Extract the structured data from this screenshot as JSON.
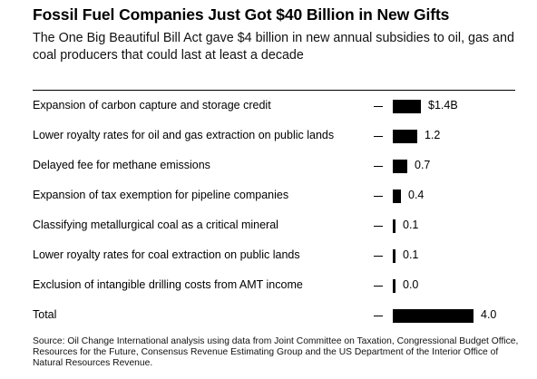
{
  "title": "Fossil Fuel Companies Just Got $40 Billion in New Gifts",
  "subtitle": "The One Big Beautiful Bill Act gave $4 billion in new annual subsidies to oil, gas and coal producers that could last at least a decade",
  "source": "Source: Oil Change International analysis using data from Joint Committee on Taxation, Congressional Budget Office, Resources for the Future, Consensus Revenue Estimating Group and the US Department of the Interior Office of Natural Resources Revenue.",
  "chart_data": {
    "type": "bar",
    "orientation": "horizontal",
    "categories": [
      "Expansion of carbon capture and storage credit",
      "Lower royalty rates for oil and gas extraction on public lands",
      "Delayed fee for methane emissions",
      "Expansion of tax exemption for pipeline companies",
      "Classifying metallurgical coal as a critical mineral",
      "Lower royalty rates for coal extraction on public lands",
      "Exclusion of intangible drilling costs from AMT income",
      "Total"
    ],
    "values": [
      1.4,
      1.2,
      0.7,
      0.4,
      0.1,
      0.1,
      0.0,
      4.0
    ],
    "value_labels": [
      "$1.4B",
      "1.2",
      "0.7",
      "0.4",
      "0.1",
      "0.1",
      "0.0",
      "4.0"
    ],
    "unit": "billion dollars",
    "xlim": [
      0,
      4.0
    ],
    "grid": false,
    "legend": "none",
    "bar_color": "#000000"
  }
}
